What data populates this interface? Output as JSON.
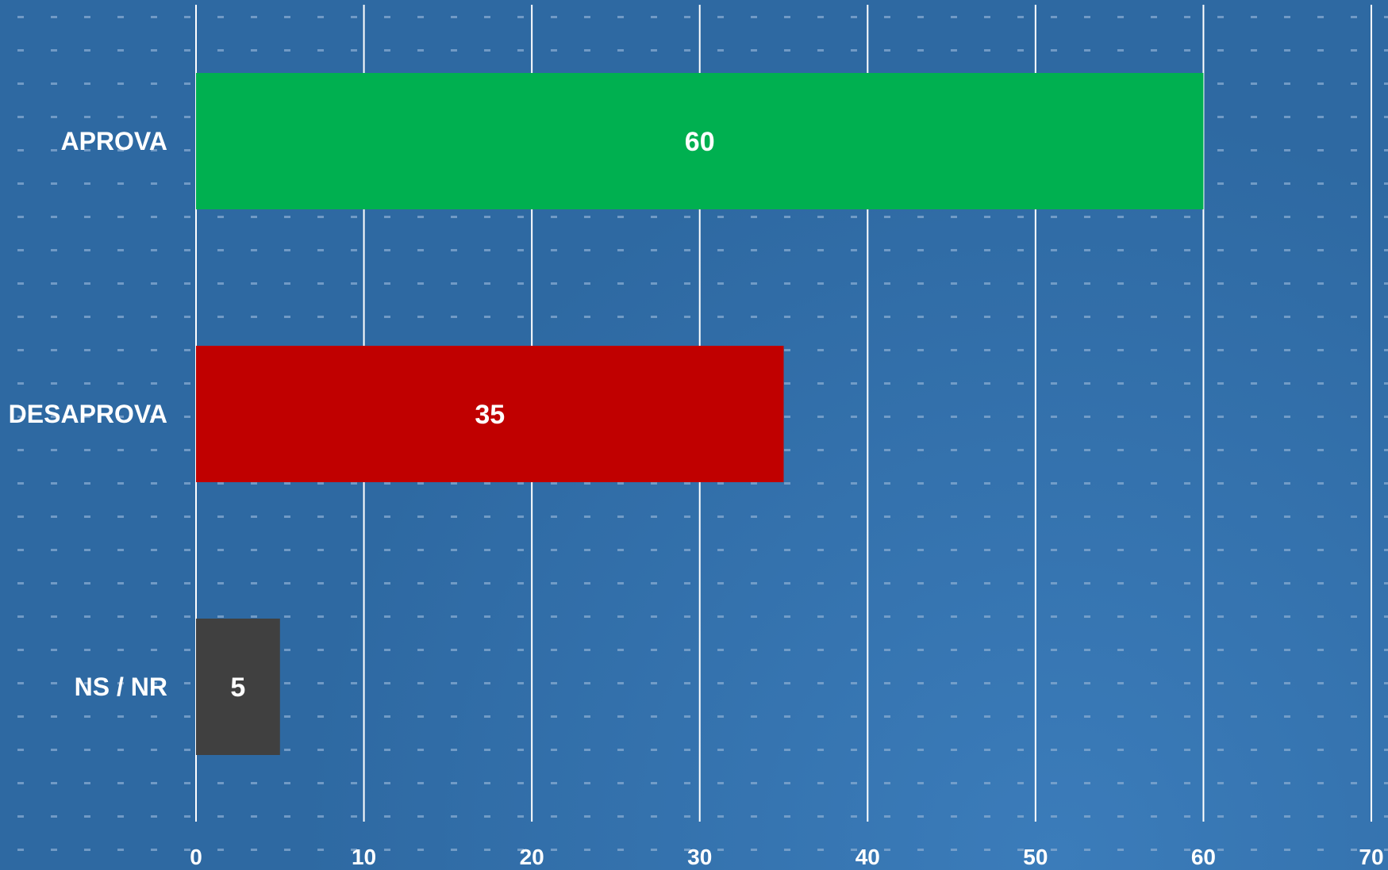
{
  "chart_data": {
    "type": "bar",
    "orientation": "horizontal",
    "categories": [
      "APROVA",
      "DESAPROVA",
      "NS / NR"
    ],
    "values": [
      60,
      35,
      5
    ],
    "bar_colors": [
      "#00b050",
      "#c00000",
      "#404040"
    ],
    "xlim": [
      0,
      70
    ],
    "x_ticks": [
      0,
      10,
      20,
      30,
      40,
      50,
      60,
      70
    ],
    "grid": "vertical",
    "data_labels": true,
    "legend": "none",
    "title": "",
    "xlabel": "",
    "ylabel": ""
  },
  "colors": {
    "background": "#2f6aa3",
    "background_glow": "#3a7ab8",
    "gridline": "#ffffff",
    "dots": "#7fa6cf",
    "text": "#ffffff"
  }
}
